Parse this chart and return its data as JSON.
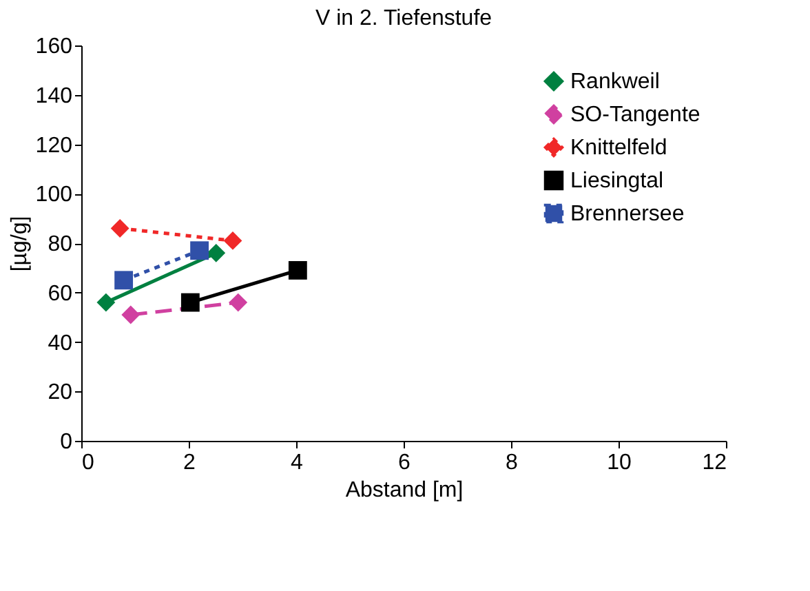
{
  "chart_data": {
    "type": "line",
    "title": "V in 2. Tiefenstufe",
    "xlabel": "Abstand [m]",
    "ylabel": "[µg/g]",
    "xlim": [
      0,
      12
    ],
    "xticks": [
      0,
      2,
      4,
      6,
      8,
      10,
      12
    ],
    "ylim": [
      0,
      160
    ],
    "yticks": [
      0,
      20,
      40,
      60,
      80,
      100,
      120,
      140,
      160
    ],
    "grid": false,
    "legend": "top right",
    "series": [
      {
        "name": "Rankweil",
        "color": "#008040",
        "x": [
          0.46,
          2.51
        ],
        "values": [
          56,
          76
        ],
        "marker": "diamond",
        "line_style": "solid"
      },
      {
        "name": "SO-Tangente",
        "color": "#d040a0",
        "x": [
          0.92,
          2.92
        ],
        "values": [
          51,
          56
        ],
        "marker": "diamond",
        "line_style": "dashed"
      },
      {
        "name": "Knittelfeld",
        "color": "#f02828",
        "x": [
          0.72,
          2.82
        ],
        "values": [
          86,
          81
        ],
        "marker": "diamond",
        "line_style": "dotted"
      },
      {
        "name": "Liesingtal",
        "color": "#000000",
        "x": [
          2.03,
          4.03
        ],
        "values": [
          56,
          69
        ],
        "marker": "square",
        "line_style": "solid"
      },
      {
        "name": "Brennersee",
        "color": "#3050a8",
        "x": [
          0.79,
          2.2
        ],
        "values": [
          65,
          77
        ],
        "marker": "square",
        "line_style": "dotted"
      }
    ]
  }
}
